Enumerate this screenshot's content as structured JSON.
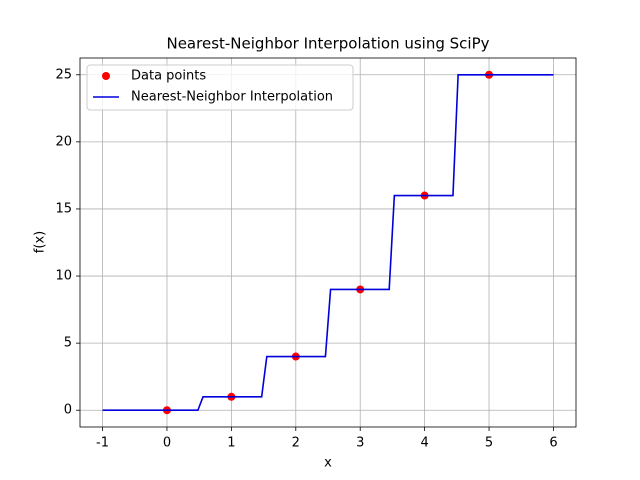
{
  "chart_data": {
    "type": "line",
    "title": "Nearest-Neighbor Interpolation using SciPy",
    "x_label": "x",
    "y_label": "f(x)",
    "series": [
      {
        "name": "Data points",
        "type": "scatter",
        "color": "red",
        "x": [
          0,
          1,
          2,
          3,
          4,
          5
        ],
        "values": [
          0,
          1,
          4,
          9,
          16,
          25
        ]
      },
      {
        "name": "Nearest-Neighbor Interpolation",
        "type": "line",
        "color": "#0000dd",
        "x": [
          -1,
          0.48,
          0.56,
          1.47,
          1.55,
          2.46,
          2.54,
          3.45,
          3.53,
          4.44,
          4.52,
          6
        ],
        "values": [
          0,
          0,
          1,
          1,
          4,
          4,
          9,
          9,
          16,
          16,
          25,
          25
        ]
      }
    ],
    "xlim": [
      -1.35,
      6.35
    ],
    "ylim": [
      -1.25,
      26.25
    ],
    "xticks": [
      -1,
      0,
      1,
      2,
      3,
      4,
      5,
      6
    ],
    "yticks": [
      0,
      5,
      10,
      15,
      20,
      25
    ],
    "grid": true,
    "legend": "upper left"
  }
}
